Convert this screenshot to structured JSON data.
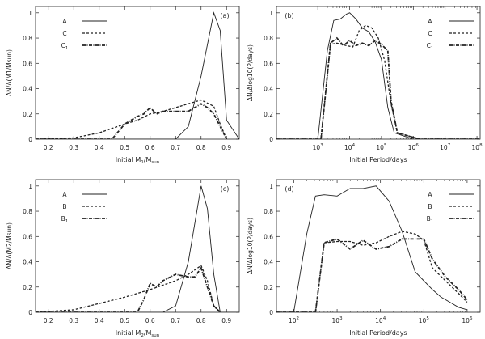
{
  "chart_data": [
    {
      "type": "line",
      "panel_label": "(a)",
      "xlabel": "Initial M",
      "xlabel_sub": "1",
      "xlabel_mid": "/M",
      "xlabel_sub2": "sun",
      "ylabel": "ΔN/Δ(M1/Msun)",
      "xscale": "linear",
      "xlim": [
        0.15,
        0.95
      ],
      "ylim": [
        0,
        1.05
      ],
      "xticks": [
        0.2,
        0.3,
        0.4,
        0.5,
        0.6,
        0.7,
        0.8,
        0.9
      ],
      "xtick_labels": [
        "0.2",
        "0.3",
        "0.4",
        "0.5",
        "0.6",
        "0.7",
        "0.8",
        "0.9"
      ],
      "yticks": [
        0,
        0.2,
        0.4,
        0.6,
        0.8,
        1
      ],
      "ytick_labels": [
        "0",
        "0.2",
        "0.4",
        "0.6",
        "0.8",
        "1"
      ],
      "legend": "top-left",
      "series": [
        {
          "name": "A",
          "style": "solid",
          "x": [
            0.15,
            0.7,
            0.75,
            0.8,
            0.85,
            0.875,
            0.9,
            0.95
          ],
          "y": [
            0,
            0,
            0.1,
            0.5,
            1.0,
            0.86,
            0.15,
            0
          ]
        },
        {
          "name": "C",
          "style": "dashed",
          "x": [
            0.15,
            0.3,
            0.4,
            0.5,
            0.55,
            0.6,
            0.65,
            0.7,
            0.75,
            0.8,
            0.85,
            0.875,
            0.9
          ],
          "y": [
            0,
            0.01,
            0.05,
            0.12,
            0.15,
            0.2,
            0.22,
            0.25,
            0.28,
            0.31,
            0.26,
            0.12,
            0
          ]
        },
        {
          "name": "C1",
          "style": "dotdash",
          "x": [
            0.15,
            0.45,
            0.5,
            0.55,
            0.575,
            0.6,
            0.625,
            0.65,
            0.7,
            0.75,
            0.8,
            0.825,
            0.85,
            0.875,
            0.9
          ],
          "y": [
            0,
            0,
            0.12,
            0.18,
            0.2,
            0.25,
            0.2,
            0.22,
            0.22,
            0.22,
            0.28,
            0.25,
            0.2,
            0.1,
            0
          ]
        }
      ]
    },
    {
      "type": "line",
      "panel_label": "(b)",
      "xlabel": "Initial Period/days",
      "ylabel": "ΔN/Δlog10(P/days)",
      "xscale": "log",
      "xlim": [
        1.7,
        8.1
      ],
      "ylim": [
        0,
        1.05
      ],
      "xticks": [
        3,
        4,
        5,
        6,
        7,
        8
      ],
      "xtick_labels": [
        "10",
        "10",
        "10",
        "10",
        "10",
        "10"
      ],
      "xtick_exponents": [
        "3",
        "4",
        "5",
        "6",
        "7",
        "8"
      ],
      "yticks": [
        0,
        0.2,
        0.4,
        0.6,
        0.8,
        1
      ],
      "ytick_labels": [
        "0",
        "0.2",
        "0.4",
        "0.6",
        "0.8",
        "1"
      ],
      "legend": "top-right",
      "series": [
        {
          "name": "A",
          "style": "solid",
          "x": [
            1.7,
            3.0,
            3.3,
            3.5,
            3.7,
            3.9,
            4.0,
            4.2,
            4.4,
            4.6,
            4.8,
            5.0,
            5.2,
            5.4,
            6.0,
            8.1
          ],
          "y": [
            0,
            0,
            0.7,
            0.94,
            0.95,
            0.99,
            1.0,
            0.95,
            0.88,
            0.85,
            0.77,
            0.63,
            0.25,
            0.05,
            0,
            0
          ]
        },
        {
          "name": "C",
          "style": "dashed",
          "x": [
            1.7,
            3.1,
            3.4,
            3.6,
            3.9,
            4.1,
            4.3,
            4.5,
            4.7,
            4.9,
            5.1,
            5.3,
            5.5,
            6.2,
            8.1
          ],
          "y": [
            0,
            0,
            0.75,
            0.76,
            0.74,
            0.73,
            0.86,
            0.9,
            0.88,
            0.8,
            0.62,
            0.28,
            0.05,
            0,
            0
          ]
        },
        {
          "name": "C1",
          "style": "dotdash",
          "x": [
            1.7,
            3.1,
            3.4,
            3.6,
            3.8,
            4.0,
            4.2,
            4.4,
            4.6,
            4.8,
            5.0,
            5.2,
            5.3,
            5.5,
            6.2,
            8.1
          ],
          "y": [
            0,
            0,
            0.76,
            0.8,
            0.74,
            0.78,
            0.74,
            0.76,
            0.74,
            0.78,
            0.75,
            0.7,
            0.3,
            0.05,
            0,
            0
          ]
        }
      ]
    },
    {
      "type": "line",
      "panel_label": "(c)",
      "xlabel": "Initial M",
      "xlabel_sub": "2",
      "xlabel_mid": "/M",
      "xlabel_sub2": "sun",
      "ylabel": "ΔN/Δ(M2/Msun)",
      "xscale": "linear",
      "xlim": [
        0.15,
        0.95
      ],
      "ylim": [
        0,
        1.05
      ],
      "xticks": [
        0.2,
        0.3,
        0.4,
        0.5,
        0.6,
        0.7,
        0.8,
        0.9
      ],
      "xtick_labels": [
        "0.2",
        "0.3",
        "0.4",
        "0.5",
        "0.6",
        "0.7",
        "0.8",
        "0.9"
      ],
      "yticks": [
        0,
        0.2,
        0.4,
        0.6,
        0.8,
        1
      ],
      "ytick_labels": [
        "0",
        "0.2",
        "0.4",
        "0.6",
        "0.8",
        "1"
      ],
      "legend": "top-left",
      "series": [
        {
          "name": "A",
          "style": "solid",
          "x": [
            0.15,
            0.65,
            0.7,
            0.75,
            0.8,
            0.825,
            0.85,
            0.875,
            0.95
          ],
          "y": [
            0,
            0,
            0.05,
            0.4,
            1.0,
            0.82,
            0.3,
            0,
            0
          ]
        },
        {
          "name": "B",
          "style": "dashed",
          "x": [
            0.15,
            0.3,
            0.4,
            0.5,
            0.6,
            0.7,
            0.75,
            0.8,
            0.825,
            0.85,
            0.875
          ],
          "y": [
            0,
            0.02,
            0.07,
            0.12,
            0.18,
            0.25,
            0.3,
            0.37,
            0.25,
            0.05,
            0
          ]
        },
        {
          "name": "B1",
          "style": "dotdash",
          "x": [
            0.15,
            0.55,
            0.575,
            0.6,
            0.625,
            0.65,
            0.7,
            0.75,
            0.775,
            0.8,
            0.825,
            0.85,
            0.875
          ],
          "y": [
            0,
            0,
            0.1,
            0.23,
            0.2,
            0.25,
            0.3,
            0.28,
            0.28,
            0.35,
            0.2,
            0.05,
            0
          ]
        }
      ]
    },
    {
      "type": "line",
      "panel_label": "(d)",
      "xlabel": "Initial Period/days",
      "ylabel": "ΔN/Δlog10(P/days)",
      "xscale": "log",
      "xlim": [
        1.6,
        6.3
      ],
      "ylim": [
        0,
        1.05
      ],
      "xticks": [
        2,
        3,
        4,
        5,
        6
      ],
      "xtick_labels": [
        "10",
        "10",
        "10",
        "10",
        "10"
      ],
      "xtick_exponents": [
        "2",
        "3",
        "4",
        "5",
        "6"
      ],
      "yticks": [
        0,
        0.2,
        0.4,
        0.6,
        0.8,
        1
      ],
      "ytick_labels": [
        "0",
        "0.2",
        "0.4",
        "0.6",
        "0.8",
        "1"
      ],
      "legend": "top-right",
      "series": [
        {
          "name": "A",
          "style": "solid",
          "x": [
            1.6,
            2.0,
            2.3,
            2.5,
            2.7,
            3.0,
            3.3,
            3.6,
            3.9,
            4.2,
            4.5,
            4.8,
            5.0,
            5.2,
            5.4,
            5.6,
            5.8,
            6.0
          ],
          "y": [
            0,
            0,
            0.62,
            0.92,
            0.93,
            0.92,
            0.98,
            0.98,
            1.0,
            0.88,
            0.64,
            0.32,
            0.25,
            0.18,
            0.12,
            0.08,
            0.04,
            0.02
          ]
        },
        {
          "name": "B",
          "style": "dashed",
          "x": [
            1.6,
            2.5,
            2.7,
            3.0,
            3.3,
            3.6,
            3.9,
            4.2,
            4.5,
            4.8,
            5.0,
            5.2,
            5.5,
            5.8,
            6.0
          ],
          "y": [
            0,
            0,
            0.55,
            0.56,
            0.56,
            0.53,
            0.55,
            0.6,
            0.64,
            0.62,
            0.57,
            0.35,
            0.25,
            0.15,
            0.08
          ]
        },
        {
          "name": "B1",
          "style": "dotdash",
          "x": [
            1.6,
            2.5,
            2.7,
            3.0,
            3.3,
            3.6,
            3.9,
            4.2,
            4.5,
            4.8,
            5.0,
            5.2,
            5.5,
            5.8,
            6.0
          ],
          "y": [
            0,
            0,
            0.55,
            0.58,
            0.5,
            0.57,
            0.5,
            0.52,
            0.58,
            0.58,
            0.58,
            0.42,
            0.28,
            0.18,
            0.1
          ]
        }
      ]
    }
  ]
}
